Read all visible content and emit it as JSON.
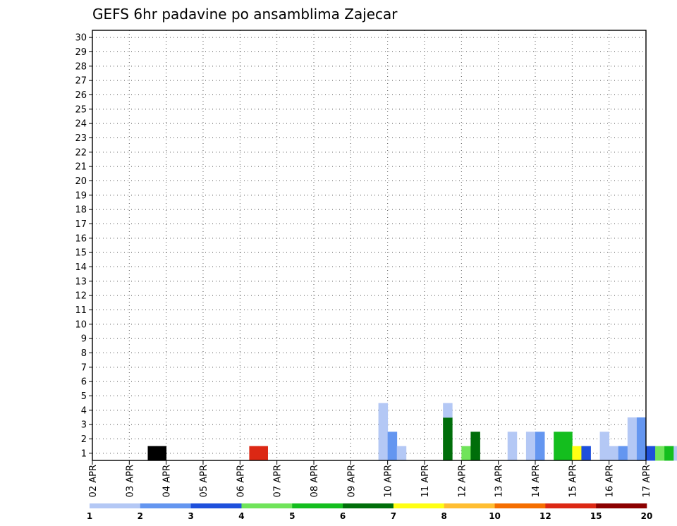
{
  "chart_data": {
    "type": "heatmap",
    "title": "GEFS 6hr padavine po ansamblima Zajecar",
    "xlabel": "",
    "ylabel": "",
    "x_tick_labels": [
      "02 APR",
      "03 APR",
      "04 APR",
      "05 APR",
      "06 APR",
      "07 APR",
      "08 APR",
      "09 APR",
      "10 APR",
      "11 APR",
      "12 APR",
      "13 APR",
      "14 APR",
      "15 APR",
      "16 APR",
      "17 APR"
    ],
    "y_tick_labels": [
      "1",
      "2",
      "3",
      "4",
      "5",
      "6",
      "7",
      "8",
      "9",
      "10",
      "11",
      "12",
      "13",
      "14",
      "15",
      "16",
      "17",
      "18",
      "19",
      "20",
      "21",
      "22",
      "23",
      "24",
      "25",
      "26",
      "27",
      "28",
      "29",
      "30"
    ],
    "steps_per_day": 4,
    "x_range_steps": [
      0,
      60
    ],
    "y_range_members": [
      0,
      30
    ],
    "grid": true,
    "legend_placement": "bottom",
    "legend": {
      "thresholds": [
        "1",
        "2",
        "3",
        "4",
        "5",
        "6",
        "7",
        "8",
        "10",
        "12",
        "15",
        "20"
      ],
      "colors": [
        "#b4c8f5",
        "#6496f0",
        "#1e50dc",
        "#70e45a",
        "#14be1e",
        "#006e0a",
        "#ffff14",
        "#ffbe32",
        "#f56e00",
        "#dc2814",
        "#8c0000"
      ]
    },
    "cells": [
      [
        6,
        1,
        11
      ],
      [
        7,
        1,
        11
      ],
      [
        17,
        1,
        9
      ],
      [
        18,
        1,
        9
      ],
      [
        31,
        1,
        0
      ],
      [
        31,
        2,
        0
      ],
      [
        31,
        3,
        0
      ],
      [
        31,
        4,
        0
      ],
      [
        32,
        1,
        1
      ],
      [
        32,
        2,
        1
      ],
      [
        33,
        1,
        0
      ],
      [
        38,
        1,
        5
      ],
      [
        38,
        2,
        5
      ],
      [
        38,
        3,
        5
      ],
      [
        38,
        4,
        0
      ],
      [
        40,
        1,
        3
      ],
      [
        41,
        1,
        5
      ],
      [
        41,
        2,
        5
      ],
      [
        45,
        1,
        0
      ],
      [
        45,
        2,
        0
      ],
      [
        47,
        1,
        0
      ],
      [
        47,
        2,
        0
      ],
      [
        48,
        1,
        1
      ],
      [
        48,
        2,
        1
      ],
      [
        50,
        1,
        4
      ],
      [
        50,
        2,
        4
      ],
      [
        51,
        1,
        4
      ],
      [
        51,
        2,
        4
      ],
      [
        52,
        1,
        6
      ],
      [
        53,
        1,
        2
      ],
      [
        55,
        1,
        0
      ],
      [
        55,
        2,
        0
      ],
      [
        56,
        1,
        0
      ],
      [
        57,
        1,
        1
      ],
      [
        58,
        1,
        0
      ],
      [
        58,
        2,
        0
      ],
      [
        58,
        3,
        0
      ],
      [
        59,
        1,
        1
      ],
      [
        59,
        2,
        1
      ],
      [
        59,
        3,
        1
      ],
      [
        60,
        1,
        2
      ],
      [
        61,
        1,
        3
      ],
      [
        62,
        1,
        4
      ],
      [
        63,
        1,
        0
      ]
    ]
  }
}
